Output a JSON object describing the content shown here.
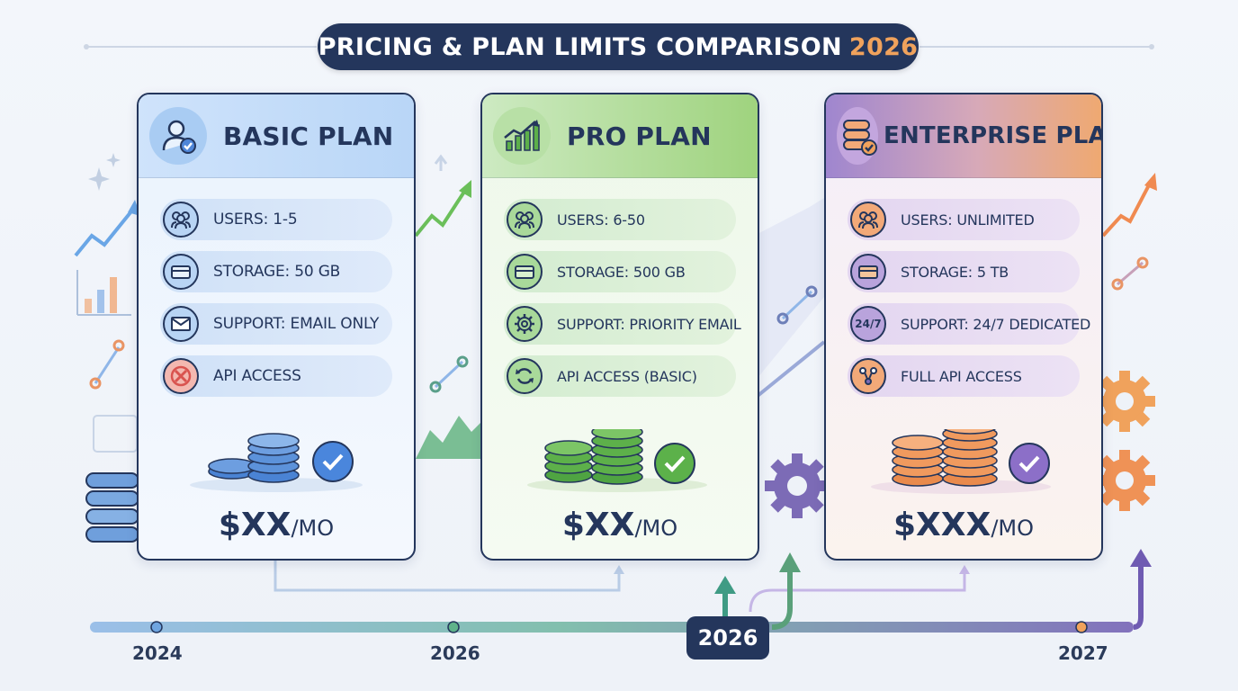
{
  "title": {
    "text": "PRICING & PLAN LIMITS COMPARISON",
    "year": "2026"
  },
  "colors": {
    "navy": "#24365c",
    "basic": "#4f86d8",
    "pro": "#5db04a",
    "enterprise": "#8a6cc6",
    "accent_orange": "#f0a25c"
  },
  "plans": [
    {
      "name": "BASIC PLAN",
      "header_icon": "user-check-icon",
      "features": [
        {
          "icon": "users-icon",
          "text": "USERS: 1-5"
        },
        {
          "icon": "storage-icon",
          "text": "STORAGE: 50 GB"
        },
        {
          "icon": "mail-icon",
          "text": "SUPPORT: EMAIL ONLY"
        },
        {
          "icon": "x-circle-icon",
          "text": "API ACCESS"
        }
      ],
      "price": "$XX",
      "period": "/MO"
    },
    {
      "name": "PRO PLAN",
      "header_icon": "growth-chart-icon",
      "features": [
        {
          "icon": "users-icon",
          "text": "USERS: 6-50"
        },
        {
          "icon": "storage-icon",
          "text": "STORAGE: 500 GB"
        },
        {
          "icon": "gear-icon",
          "text": "SUPPORT: PRIORITY EMAIL"
        },
        {
          "icon": "refresh-icon",
          "text": "API ACCESS (BASIC)"
        }
      ],
      "price": "$XX",
      "period": "/MO"
    },
    {
      "name": "ENTERPRISE PLAN",
      "header_icon": "database-check-icon",
      "features": [
        {
          "icon": "users-icon",
          "text": "USERS: UNLIMITED"
        },
        {
          "icon": "storage-icon",
          "text": "STORAGE: 5 TB"
        },
        {
          "icon": "clock-24-7-icon",
          "icon_text": "24/7",
          "text": "SUPPORT: 24/7 DEDICATED"
        },
        {
          "icon": "network-icon",
          "text": "FULL API ACCESS"
        }
      ],
      "price": "$XXX",
      "period": "/MO"
    }
  ],
  "timeline": {
    "labels": [
      "2024",
      "2026",
      "2027"
    ],
    "highlight": "2026"
  }
}
